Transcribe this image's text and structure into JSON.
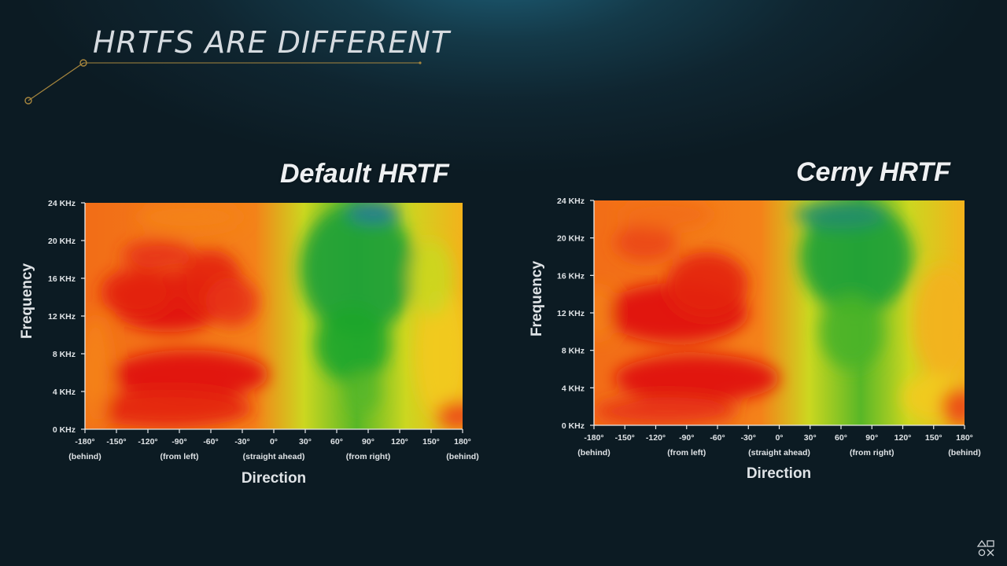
{
  "slide": {
    "title": "HRTFS ARE DIFFERENT"
  },
  "colors": {
    "accent_gold": "#a8873e",
    "heat_low": "#e01010",
    "heat_mid": "#f2e21e",
    "heat_high": "#1ba62a",
    "heat_peak": "#2d6fb6"
  },
  "icons": {
    "brand": "playstation-symbols-icon"
  },
  "chart_data": [
    {
      "type": "heatmap",
      "title": "Default HRTF",
      "xlabel": "Direction",
      "ylabel": "Frequency",
      "x_ticks": [
        {
          "value": -180,
          "label": "-180°",
          "sublabel": "(behind)"
        },
        {
          "value": -150,
          "label": "-150°"
        },
        {
          "value": -120,
          "label": "-120°"
        },
        {
          "value": -90,
          "label": "-90°",
          "sublabel": "(from left)"
        },
        {
          "value": -60,
          "label": "-60°"
        },
        {
          "value": -30,
          "label": "-30°"
        },
        {
          "value": 0,
          "label": "0°",
          "sublabel": "(straight ahead)"
        },
        {
          "value": 30,
          "label": "30°"
        },
        {
          "value": 60,
          "label": "60°"
        },
        {
          "value": 90,
          "label": "90°",
          "sublabel": "(from right)"
        },
        {
          "value": 120,
          "label": "120°"
        },
        {
          "value": 150,
          "label": "150°"
        },
        {
          "value": 180,
          "label": "180°",
          "sublabel": "(behind)"
        }
      ],
      "y_ticks": [
        {
          "value": 0,
          "label": "0 KHz"
        },
        {
          "value": 4,
          "label": "4 KHz"
        },
        {
          "value": 8,
          "label": "8 KHz"
        },
        {
          "value": 12,
          "label": "12 KHz"
        },
        {
          "value": 16,
          "label": "16 KHz"
        },
        {
          "value": 20,
          "label": "20 KHz"
        },
        {
          "value": 24,
          "label": "24 KHz"
        }
      ],
      "xlim": [
        -180,
        180
      ],
      "ylim": [
        0,
        24
      ],
      "color_scale": [
        "red",
        "orange",
        "yellow",
        "green",
        "blue"
      ],
      "regions": [
        {
          "x": -100,
          "y": 13.5,
          "rx": 55,
          "ry": 3.2,
          "value": 0.0
        },
        {
          "x": -130,
          "y": 14.5,
          "rx": 35,
          "ry": 2.6,
          "value": 0.05
        },
        {
          "x": -60,
          "y": 15.5,
          "rx": 30,
          "ry": 3.5,
          "value": 0.05
        },
        {
          "x": -40,
          "y": 13.5,
          "rx": 25,
          "ry": 2.6,
          "value": 0.1
        },
        {
          "x": -110,
          "y": 18.5,
          "rx": 35,
          "ry": 1.5,
          "value": 0.1
        },
        {
          "x": -80,
          "y": 22.5,
          "rx": 50,
          "ry": 1.5,
          "value": 0.3
        },
        {
          "x": -80,
          "y": 5.8,
          "rx": 75,
          "ry": 2.6,
          "value": 0.0
        },
        {
          "x": -100,
          "y": 2.2,
          "rx": 80,
          "ry": 2.0,
          "value": 0.05
        },
        {
          "x": -170,
          "y": 6,
          "rx": 15,
          "ry": 6,
          "value": 0.3
        },
        {
          "x": 80,
          "y": 17,
          "rx": 55,
          "ry": 7,
          "value": 0.8
        },
        {
          "x": 75,
          "y": 9,
          "rx": 35,
          "ry": 4,
          "value": 0.78
        },
        {
          "x": 85,
          "y": 4,
          "rx": 15,
          "ry": 2.2,
          "value": 0.7
        },
        {
          "x": 95,
          "y": 23,
          "rx": 25,
          "ry": 1.2,
          "value": 0.95
        },
        {
          "x": 160,
          "y": 8,
          "rx": 25,
          "ry": 7,
          "value": 0.45
        },
        {
          "x": 150,
          "y": 16,
          "rx": 20,
          "ry": 4,
          "value": 0.55
        },
        {
          "x": 175,
          "y": 1.5,
          "rx": 20,
          "ry": 1.5,
          "value": 0.15
        }
      ]
    },
    {
      "type": "heatmap",
      "title": "Cerny HRTF",
      "xlabel": "Direction",
      "ylabel": "Frequency",
      "x_ticks": [
        {
          "value": -180,
          "label": "-180°",
          "sublabel": "(behind)"
        },
        {
          "value": -150,
          "label": "-150°"
        },
        {
          "value": -120,
          "label": "-120°"
        },
        {
          "value": -90,
          "label": "-90°",
          "sublabel": "(from left)"
        },
        {
          "value": -60,
          "label": "-60°"
        },
        {
          "value": -30,
          "label": "-30°"
        },
        {
          "value": 0,
          "label": "0°",
          "sublabel": "(straight ahead)"
        },
        {
          "value": 30,
          "label": "30°"
        },
        {
          "value": 60,
          "label": "60°"
        },
        {
          "value": 90,
          "label": "90°",
          "sublabel": "(from right)"
        },
        {
          "value": 120,
          "label": "120°"
        },
        {
          "value": 150,
          "label": "150°"
        },
        {
          "value": 180,
          "label": "180°",
          "sublabel": "(behind)"
        }
      ],
      "y_ticks": [
        {
          "value": 0,
          "label": "0 KHz"
        },
        {
          "value": 4,
          "label": "4 KHz"
        },
        {
          "value": 8,
          "label": "8 KHz"
        },
        {
          "value": 12,
          "label": "12 KHz"
        },
        {
          "value": 16,
          "label": "16 KHz"
        },
        {
          "value": 20,
          "label": "20 KHz"
        },
        {
          "value": 24,
          "label": "24 KHz"
        }
      ],
      "xlim": [
        -180,
        180
      ],
      "ylim": [
        0,
        24
      ],
      "color_scale": [
        "red",
        "orange",
        "yellow",
        "green",
        "blue"
      ],
      "regions": [
        {
          "x": -100,
          "y": 12,
          "rx": 70,
          "ry": 3.2,
          "value": 0.0
        },
        {
          "x": -70,
          "y": 15,
          "rx": 40,
          "ry": 3.5,
          "value": 0.05
        },
        {
          "x": -130,
          "y": 19.5,
          "rx": 30,
          "ry": 2.0,
          "value": 0.15
        },
        {
          "x": -110,
          "y": 22.5,
          "rx": 45,
          "ry": 1.5,
          "value": 0.25
        },
        {
          "x": -80,
          "y": 5,
          "rx": 80,
          "ry": 2.6,
          "value": 0.0
        },
        {
          "x": -110,
          "y": 1.5,
          "rx": 70,
          "ry": 1.5,
          "value": 0.1
        },
        {
          "x": 75,
          "y": 18,
          "rx": 55,
          "ry": 6,
          "value": 0.8
        },
        {
          "x": 70,
          "y": 10,
          "rx": 30,
          "ry": 4,
          "value": 0.72
        },
        {
          "x": 60,
          "y": 22.5,
          "rx": 45,
          "ry": 1.5,
          "value": 0.88
        },
        {
          "x": 160,
          "y": 11,
          "rx": 30,
          "ry": 6,
          "value": 0.4
        },
        {
          "x": 150,
          "y": 3,
          "rx": 30,
          "ry": 2.5,
          "value": 0.45
        },
        {
          "x": 175,
          "y": 2,
          "rx": 18,
          "ry": 2,
          "value": 0.15
        },
        {
          "x": -175,
          "y": 12,
          "rx": 12,
          "ry": 3,
          "value": 0.3
        }
      ]
    }
  ]
}
